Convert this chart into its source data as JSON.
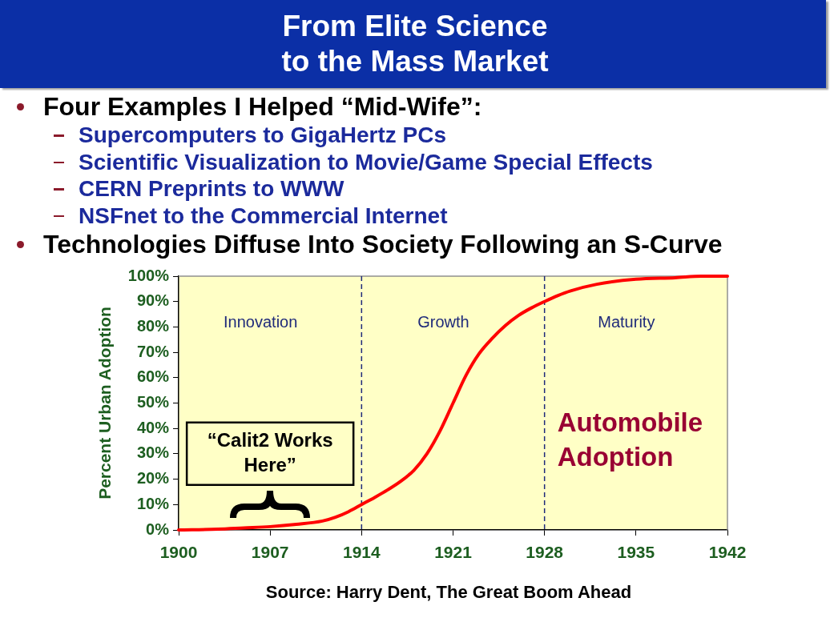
{
  "chart_data": {
    "type": "line",
    "title": "From Elite Science to the Mass Market",
    "ylabel": "Percent Urban Adoption",
    "x": [
      1900,
      1903,
      1905,
      1907,
      1909,
      1911,
      1912,
      1913,
      1914,
      1915,
      1916,
      1917,
      1918,
      1919,
      1920,
      1921,
      1922,
      1923,
      1924,
      1925,
      1926,
      1927,
      1928,
      1929,
      1930,
      1932,
      1935,
      1938,
      1940,
      1942
    ],
    "series": [
      {
        "color": "#ff0000",
        "values": [
          0,
          0.3,
          0.8,
          1.3,
          2.2,
          3.5,
          5,
          7.2,
          10,
          12.8,
          15.8,
          19.2,
          23.5,
          30,
          39,
          50,
          61,
          69.5,
          75.5,
          80.5,
          84.5,
          87.5,
          90,
          92.3,
          94.2,
          96.8,
          98.8,
          99.4,
          100,
          100
        ]
      }
    ],
    "xlim": [
      1900,
      1942
    ],
    "xticks": [
      1900,
      1907,
      1914,
      1921,
      1928,
      1935,
      1942
    ],
    "ylim": [
      0,
      100
    ],
    "yticks": [
      {
        "value": 0,
        "label": "0%"
      },
      {
        "value": 10,
        "label": "10%"
      },
      {
        "value": 20,
        "label": "20%"
      },
      {
        "value": 30,
        "label": "30%"
      },
      {
        "value": 40,
        "label": "40%"
      },
      {
        "value": 50,
        "label": "50%"
      },
      {
        "value": 60,
        "label": "60%"
      },
      {
        "value": 70,
        "label": "70%"
      },
      {
        "value": 80,
        "label": "80%"
      },
      {
        "value": 90,
        "label": "90%"
      },
      {
        "value": 100,
        "label": "100%"
      }
    ],
    "bands": [
      {
        "axis": "x",
        "from": 1900,
        "to": 1914,
        "label": "Innovation",
        "color": "#ffffc6"
      },
      {
        "axis": "x",
        "from": 1914,
        "to": 1928,
        "label": "Growth",
        "color": "#ffffc6"
      },
      {
        "axis": "x",
        "from": 1928,
        "to": 1942,
        "label": "Maturity",
        "color": "#ffffc6"
      }
    ],
    "ref_lines": [
      {
        "axis": "x",
        "value": 1914,
        "color": "#1f2a7a",
        "line_style": "dashed"
      },
      {
        "axis": "x",
        "value": 1928,
        "color": "#1f2a7a",
        "line_style": "dashed"
      }
    ],
    "annotations": [
      "Four Examples I Helped “Mid-Wife”:",
      "Supercomputers to GigaHertz PCs",
      "Scientific Visualization to Movie/Game Special Effects",
      "CERN Preprints to WWW",
      "NSFnet to the Commercial Internet",
      "Technologies Diffuse Into Society Following an S-Curve",
      "Automobile Adoption",
      {
        "text": "“Calit2 Works Here”",
        "x": 1907,
        "y": 1
      },
      "Source: Harry Dent, The Great Boom Ahead"
    ]
  }
}
